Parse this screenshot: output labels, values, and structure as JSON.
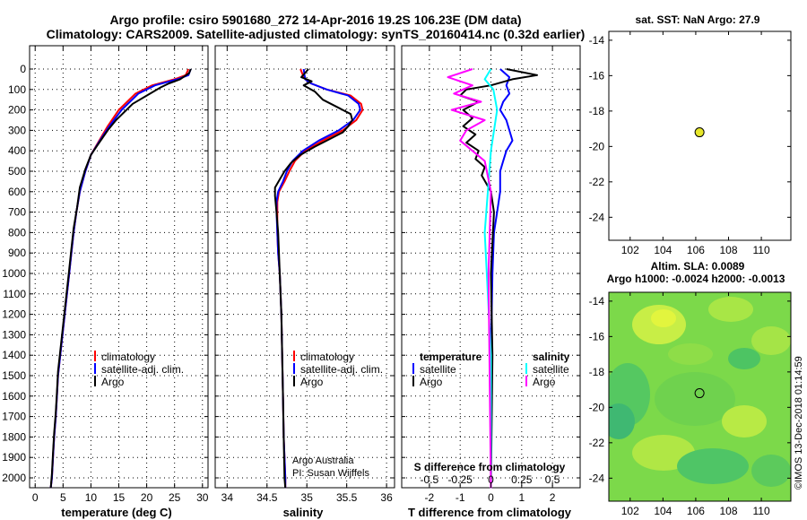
{
  "header": {
    "title1": "Argo profile: csiro 5901680_272 14-Apr-2016 19.2S 106.23E (DM data)",
    "title2": "Climatology: CARS2009. Satellite-adjusted climatology: synTS_20160414.nc (0.32d earlier)"
  },
  "colors": {
    "climatology": "#ff0000",
    "satellite": "#0000ff",
    "argo": "#000000",
    "sat_salinity": "#00ffff",
    "argo_salinity": "#ff00ff",
    "map_marker": "#e6e62a"
  },
  "depth_ticks": [
    "0",
    "100",
    "200",
    "300",
    "400",
    "500",
    "600",
    "700",
    "800",
    "900",
    "1000",
    "1100",
    "1200",
    "1300",
    "1400",
    "1500",
    "1600",
    "1700",
    "1800",
    "1900",
    "2000"
  ],
  "panels": {
    "temperature": {
      "xlabel": "temperature (deg C)",
      "xticks": [
        "0",
        "5",
        "10",
        "15",
        "20",
        "25",
        "30"
      ],
      "legend": [
        "climatology",
        "satellite-adj. clim.",
        "Argo"
      ]
    },
    "salinity": {
      "xlabel": "salinity",
      "xticks": [
        "34",
        "34.5",
        "35",
        "35.5",
        "36"
      ],
      "legend": [
        "climatology",
        "satellite-adj. clim.",
        "Argo"
      ],
      "credit1": "Argo Australia",
      "credit2": "PI: Susan Wijffels"
    },
    "difference": {
      "xlabel": "T difference from climatology",
      "top_label": "S difference from climatology",
      "xticks": [
        "-2",
        "-1",
        "0",
        "1",
        "2"
      ],
      "sticks": [
        "-0.5",
        "-0.25",
        "0",
        "0.25",
        "0.5"
      ],
      "legend_t_title": "temperature",
      "legend_s_title": "salinity",
      "legend_t": [
        "satellite",
        "Argo"
      ],
      "legend_s": [
        "satellite",
        "Argo"
      ]
    }
  },
  "sst_map": {
    "title": "sat. SST: NaN Argo: 27.9",
    "yticks": [
      "-14",
      "-16",
      "-18",
      "-20",
      "-22",
      "-24"
    ],
    "xticks": [
      "102",
      "104",
      "106",
      "108",
      "110"
    ]
  },
  "sla_map": {
    "title1": "Altim. SLA: 0.0089",
    "title2": "Argo h1000: -0.0024 h2000: -0.0013",
    "yticks": [
      "-14",
      "-16",
      "-18",
      "-20",
      "-22",
      "-24"
    ],
    "xticks": [
      "102",
      "104",
      "106",
      "108",
      "110"
    ]
  },
  "footer_stamp": "©IMOS 13-Dec-2018 01:14:59",
  "chart_data": [
    {
      "type": "line",
      "title": "",
      "xlabel": "temperature (deg C)",
      "ylabel": "",
      "xlim": [
        -1,
        31
      ],
      "ylim": [
        2060,
        0
      ],
      "series": [
        {
          "name": "climatology",
          "x": [
            27.5,
            27.0,
            25.0,
            21.0,
            18.0,
            15.0,
            13.0,
            11.5,
            10.0,
            9.0,
            8.0,
            7.4,
            6.9,
            6.5,
            6.1,
            5.7,
            5.3,
            4.9,
            4.5,
            4.1,
            3.9,
            3.7,
            3.4,
            3.2,
            3.0,
            2.8
          ],
          "y": [
            0,
            30,
            50,
            80,
            120,
            200,
            280,
            350,
            420,
            500,
            600,
            700,
            800,
            900,
            1000,
            1100,
            1200,
            1300,
            1400,
            1500,
            1600,
            1700,
            1800,
            1900,
            2000,
            2050
          ]
        },
        {
          "name": "satellite-adj. clim.",
          "x": [
            27.9,
            27.5,
            25.5,
            21.5,
            18.5,
            15.5,
            13.3,
            11.6,
            10.0,
            9.0,
            8.0,
            7.4,
            6.9,
            6.5,
            6.1,
            5.7,
            5.3,
            4.9,
            4.5,
            4.1,
            3.9,
            3.7,
            3.4,
            3.2,
            3.0,
            2.8
          ],
          "y": [
            0,
            30,
            50,
            80,
            120,
            200,
            280,
            350,
            420,
            500,
            600,
            700,
            800,
            900,
            1000,
            1100,
            1200,
            1300,
            1400,
            1500,
            1600,
            1700,
            1800,
            1900,
            2000,
            2050
          ]
        },
        {
          "name": "Argo",
          "x": [
            27.9,
            27.6,
            26.0,
            24.0,
            22.5,
            20.0,
            17.5,
            16.0,
            14.5,
            13.0,
            12.0,
            11.0,
            10.0,
            9.0,
            8.0,
            7.5,
            6.9,
            6.5,
            6.1,
            5.7,
            5.3,
            4.9,
            4.5,
            4.1,
            3.9,
            3.7,
            3.4,
            3.2,
            3.0,
            2.8
          ],
          "y": [
            0,
            20,
            50,
            70,
            90,
            130,
            170,
            210,
            250,
            300,
            340,
            380,
            420,
            490,
            580,
            680,
            780,
            880,
            980,
            1080,
            1180,
            1280,
            1380,
            1480,
            1580,
            1680,
            1780,
            1880,
            1980,
            2050
          ]
        }
      ]
    },
    {
      "type": "line",
      "title": "",
      "xlabel": "salinity",
      "ylabel": "",
      "xlim": [
        33.85,
        36.1
      ],
      "ylim": [
        2060,
        0
      ],
      "series": [
        {
          "name": "climatology",
          "x": [
            34.92,
            34.95,
            34.98,
            35.05,
            35.25,
            35.55,
            35.68,
            35.7,
            35.62,
            35.45,
            35.2,
            34.98,
            34.85,
            34.78,
            34.72,
            34.65,
            34.63,
            34.63,
            34.63,
            34.64,
            34.66,
            34.68,
            34.69,
            34.7,
            34.71,
            34.72,
            34.73,
            34.73
          ],
          "y": [
            0,
            30,
            50,
            70,
            100,
            130,
            170,
            200,
            250,
            300,
            350,
            400,
            450,
            500,
            550,
            600,
            650,
            700,
            800,
            900,
            1000,
            1200,
            1400,
            1600,
            1800,
            1900,
            2000,
            2050
          ]
        },
        {
          "name": "satellite-adj. clim.",
          "x": [
            34.96,
            34.97,
            34.98,
            35.05,
            35.25,
            35.52,
            35.65,
            35.67,
            35.58,
            35.4,
            35.15,
            34.95,
            34.82,
            34.75,
            34.7,
            34.64,
            34.62,
            34.62,
            34.63,
            34.64,
            34.66,
            34.68,
            34.69,
            34.7,
            34.71,
            34.72,
            34.73,
            34.73
          ],
          "y": [
            0,
            30,
            50,
            70,
            100,
            130,
            170,
            200,
            250,
            300,
            350,
            400,
            450,
            500,
            550,
            600,
            650,
            700,
            800,
            900,
            1000,
            1200,
            1400,
            1600,
            1800,
            1900,
            2000,
            2050
          ]
        },
        {
          "name": "Argo",
          "x": [
            35.02,
            34.93,
            35.06,
            34.96,
            35.1,
            35.2,
            35.4,
            35.55,
            35.57,
            35.52,
            35.45,
            35.3,
            35.1,
            34.92,
            34.8,
            34.72,
            34.66,
            34.6,
            34.6,
            34.62,
            34.64,
            34.66,
            34.68,
            34.69,
            34.7,
            34.71,
            34.72,
            34.73
          ],
          "y": [
            0,
            40,
            60,
            80,
            110,
            150,
            190,
            220,
            250,
            280,
            310,
            340,
            380,
            420,
            460,
            500,
            540,
            580,
            620,
            700,
            800,
            1000,
            1200,
            1400,
            1600,
            1800,
            2000,
            2050
          ]
        }
      ]
    },
    {
      "type": "line",
      "title": "",
      "xlabel": "T difference from climatology",
      "ylabel": "",
      "xlim": [
        -2.9,
        2.9
      ],
      "ylim": [
        2060,
        0
      ],
      "series": [
        {
          "name": "temperature satellite",
          "x": [
            0.3,
            0.6,
            0.5,
            0.6,
            0.4,
            0.3,
            0.5,
            0.6,
            0.7,
            0.5,
            0.4,
            0.3,
            0.3,
            0.2,
            0.1,
            0.05,
            0.0,
            0.0,
            0.0
          ],
          "y": [
            0,
            40,
            80,
            120,
            160,
            200,
            250,
            300,
            350,
            400,
            450,
            500,
            600,
            700,
            800,
            1000,
            1400,
            1800,
            2050
          ]
        },
        {
          "name": "temperature Argo",
          "x": [
            0.5,
            1.5,
            0.7,
            0.0,
            -0.8,
            -1.0,
            -0.4,
            -0.9,
            -0.6,
            -0.9,
            -0.5,
            -0.8,
            -0.4,
            -0.5,
            -0.2,
            -0.3,
            0.0,
            0.1,
            0.0,
            0.05,
            0.0
          ],
          "y": [
            0,
            30,
            50,
            80,
            100,
            130,
            160,
            200,
            240,
            280,
            320,
            360,
            400,
            440,
            480,
            520,
            600,
            700,
            1000,
            1400,
            2050
          ]
        },
        {
          "name": "salinity satellite",
          "x": [
            0.0,
            -0.05,
            0.02,
            0.05,
            0.0,
            -0.05,
            0.0,
            0.0
          ],
          "y": [
            0,
            50,
            100,
            200,
            400,
            800,
            1400,
            2050
          ]
        },
        {
          "name": "salinity Argo",
          "x": [
            -0.15,
            -0.35,
            -0.15,
            -0.3,
            -0.08,
            -0.32,
            -0.05,
            -0.2,
            -0.25,
            -0.05,
            0.0,
            -0.02,
            0.0
          ],
          "y": [
            0,
            40,
            80,
            120,
            160,
            200,
            250,
            300,
            350,
            450,
            600,
            1000,
            2050
          ]
        }
      ]
    },
    {
      "type": "scatter",
      "title": "sat. SST: NaN Argo: 27.9",
      "xlim": [
        100.7,
        111.8
      ],
      "ylim": [
        -25.3,
        -13.5
      ],
      "series": [
        {
          "name": "",
          "x": [
            106.23
          ],
          "y": [
            -19.2
          ]
        }
      ]
    },
    {
      "type": "heatmap",
      "title": "Altim. SLA: 0.0089",
      "xlim": [
        100.7,
        111.8
      ],
      "ylim": [
        -25.3,
        -13.5
      ],
      "series": [
        {
          "name": "",
          "x": [
            106.23
          ],
          "y": [
            -19.2
          ]
        }
      ]
    }
  ]
}
